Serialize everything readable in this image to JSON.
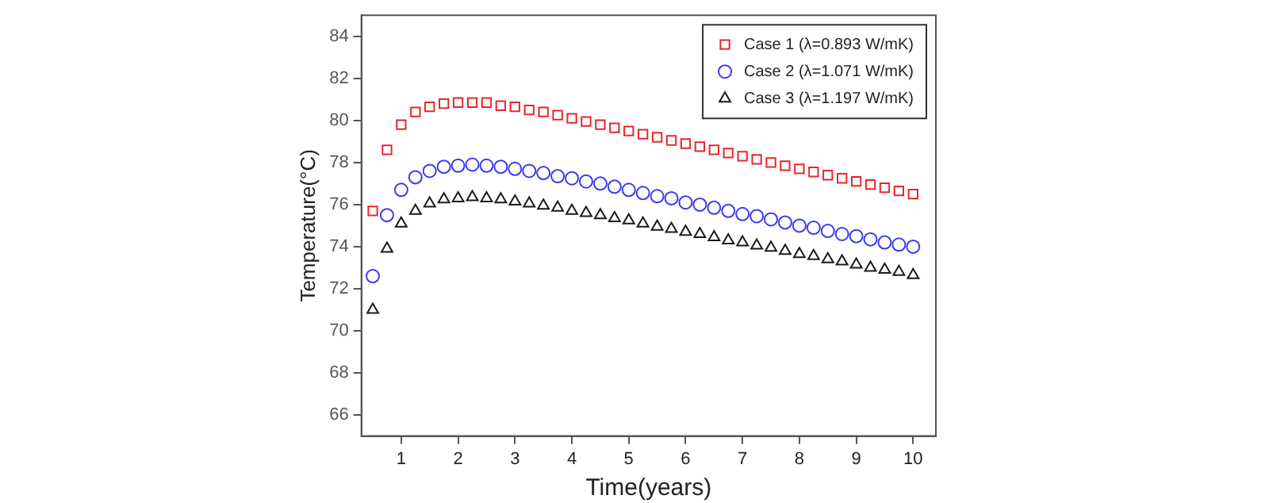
{
  "chart_data": {
    "type": "scatter",
    "xlabel": "Time(years)",
    "ylabel": "Temperature(°C)",
    "x": [
      0.5,
      0.75,
      1,
      1.25,
      1.5,
      1.75,
      2,
      2.25,
      2.5,
      2.75,
      3,
      3.25,
      3.5,
      3.75,
      4,
      4.25,
      4.5,
      4.75,
      5,
      5.25,
      5.5,
      5.75,
      6,
      6.25,
      6.5,
      6.75,
      7,
      7.25,
      7.5,
      7.75,
      8,
      8.25,
      8.5,
      8.75,
      9,
      9.25,
      9.5,
      9.75,
      10
    ],
    "series": [
      {
        "name": "Case 1 (λ=0.893 W/mK)",
        "color": "#e8262c",
        "marker": "square",
        "values": [
          75.7,
          78.6,
          79.8,
          80.4,
          80.65,
          80.8,
          80.85,
          80.85,
          80.85,
          80.7,
          80.65,
          80.5,
          80.4,
          80.25,
          80.1,
          79.95,
          79.8,
          79.65,
          79.5,
          79.35,
          79.2,
          79.05,
          78.9,
          78.75,
          78.6,
          78.45,
          78.3,
          78.15,
          78.0,
          77.85,
          77.7,
          77.55,
          77.4,
          77.25,
          77.1,
          76.95,
          76.8,
          76.65,
          76.5
        ]
      },
      {
        "name": "Case 2 (λ=1.071 W/mK)",
        "color": "#3a3af0",
        "marker": "circle",
        "values": [
          72.6,
          75.5,
          76.7,
          77.3,
          77.6,
          77.8,
          77.85,
          77.9,
          77.85,
          77.8,
          77.7,
          77.6,
          77.5,
          77.35,
          77.25,
          77.1,
          77.0,
          76.85,
          76.7,
          76.55,
          76.4,
          76.3,
          76.1,
          76.0,
          75.85,
          75.7,
          75.55,
          75.45,
          75.3,
          75.15,
          75.0,
          74.9,
          74.75,
          74.6,
          74.5,
          74.35,
          74.2,
          74.1,
          74.0
        ]
      },
      {
        "name": "Case 3 (λ=1.197 W/mK)",
        "color": "#1a1a1a",
        "marker": "triangle",
        "values": [
          71.0,
          73.9,
          75.1,
          75.7,
          76.05,
          76.25,
          76.3,
          76.35,
          76.3,
          76.25,
          76.15,
          76.05,
          75.95,
          75.85,
          75.7,
          75.6,
          75.5,
          75.35,
          75.25,
          75.1,
          74.95,
          74.85,
          74.7,
          74.6,
          74.45,
          74.3,
          74.2,
          74.05,
          73.95,
          73.8,
          73.65,
          73.55,
          73.4,
          73.3,
          73.15,
          73.0,
          72.9,
          72.8,
          72.65
        ]
      }
    ],
    "xlim": [
      0.3,
      10.4
    ],
    "xticks": [
      1,
      2,
      3,
      4,
      5,
      6,
      7,
      8,
      9,
      10
    ],
    "ylim": [
      65,
      85
    ],
    "yticks": [
      66,
      68,
      70,
      72,
      74,
      76,
      78,
      80,
      82,
      84
    ],
    "grid": false,
    "legend": "top right"
  }
}
